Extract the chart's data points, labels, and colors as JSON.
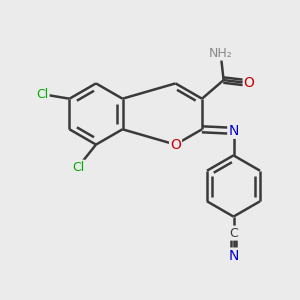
{
  "background_color": "#ebebeb",
  "bond_color": "#3a3a3a",
  "bond_width": 1.8,
  "atom_colors": {
    "C": "#3a3a3a",
    "N": "#0000cc",
    "O": "#cc0000",
    "Cl": "#00aa00",
    "H": "#888888"
  },
  "font_size": 9,
  "fig_size": [
    3.0,
    3.0
  ],
  "dpi": 100
}
